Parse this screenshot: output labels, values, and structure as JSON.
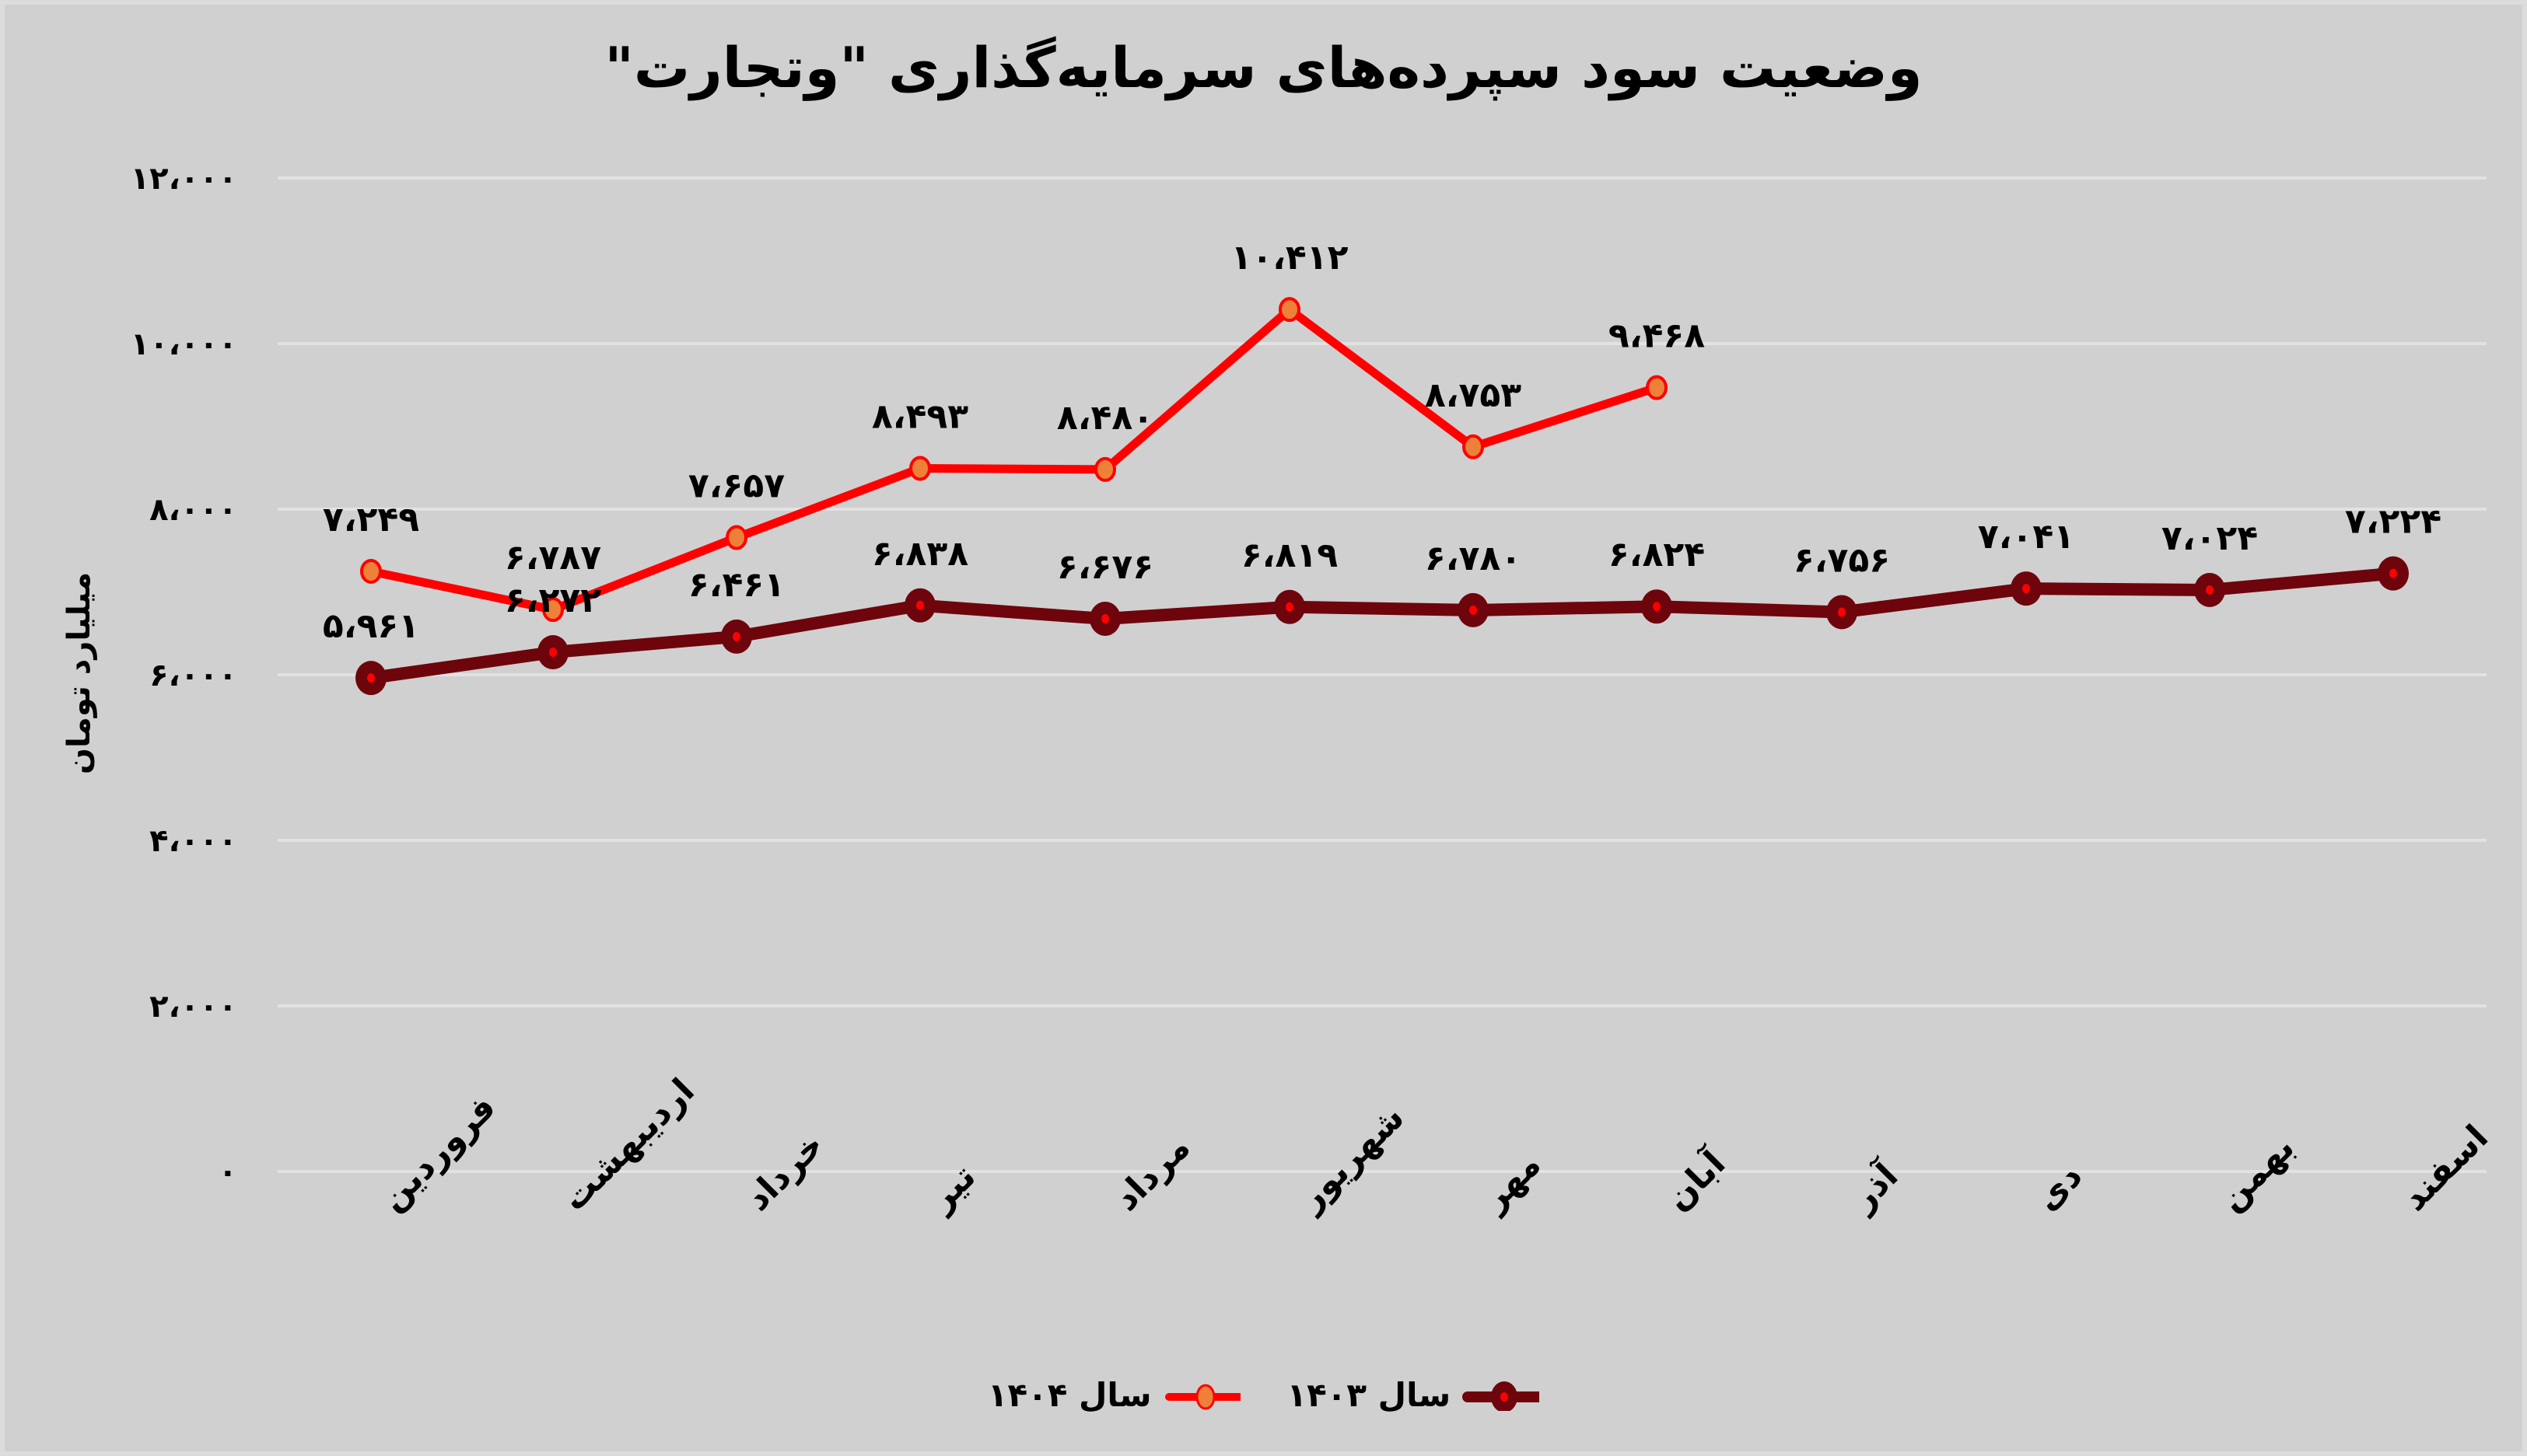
{
  "chart_data": {
    "type": "line",
    "title": "وضعیت سود سپرده‌های سرمایه‌گذاری \"وتجارت\"",
    "xlabel": "",
    "ylabel": "میلیارد تومان",
    "ylim": [
      0,
      12000
    ],
    "yticks": [
      0,
      2000,
      4000,
      6000,
      8000,
      10000,
      12000
    ],
    "ytick_labels": [
      "۰",
      "۲،۰۰۰",
      "۴،۰۰۰",
      "۶،۰۰۰",
      "۸،۰۰۰",
      "۱۰،۰۰۰",
      "۱۲،۰۰۰"
    ],
    "grid": true,
    "legend_position": "bottom",
    "categories": [
      "فروردین",
      "اردیبهشت",
      "خرداد",
      "تیر",
      "مرداد",
      "شهریور",
      "مهر",
      "آبان",
      "آذر",
      "دی",
      "بهمن",
      "اسفند"
    ],
    "series": [
      {
        "name": "سال ۱۴۰۳",
        "color": "#6e040c",
        "marker_color": "#ff0000",
        "values": [
          5961,
          6272,
          6461,
          6838,
          6676,
          6819,
          6780,
          6824,
          6756,
          7041,
          7024,
          7224
        ],
        "labels": [
          "۵،۹۶۱",
          "۶،۲۷۲",
          "۶،۴۶۱",
          "۶،۸۳۸",
          "۶،۶۷۶",
          "۶،۸۱۹",
          "۶،۷۸۰",
          "۶،۸۲۴",
          "۶،۷۵۶",
          "۷،۰۴۱",
          "۷،۰۲۴",
          "۷،۲۲۴"
        ]
      },
      {
        "name": "سال ۱۴۰۴",
        "color": "#ff0000",
        "marker_color": "#ed8139",
        "values": [
          7249,
          6787,
          7657,
          8493,
          8480,
          10412,
          8753,
          9468,
          null,
          null,
          null,
          null
        ],
        "labels": [
          "۷،۲۴۹",
          "۶،۷۸۷",
          "۷،۶۵۷",
          "۸،۴۹۳",
          "۸،۴۸۰",
          "۱۰،۴۱۲",
          "۸،۷۵۳",
          "۹،۴۶۸",
          null,
          null,
          null,
          null
        ]
      }
    ]
  },
  "legend": {
    "series_1403": "سال ۱۴۰۳",
    "series_1404": "سال ۱۴۰۴"
  },
  "colors": {
    "background": "#d0d0d0",
    "gridline": "#e2e2e2",
    "series_1403_line": "#6e040c",
    "series_1404_line": "#ff0000"
  }
}
